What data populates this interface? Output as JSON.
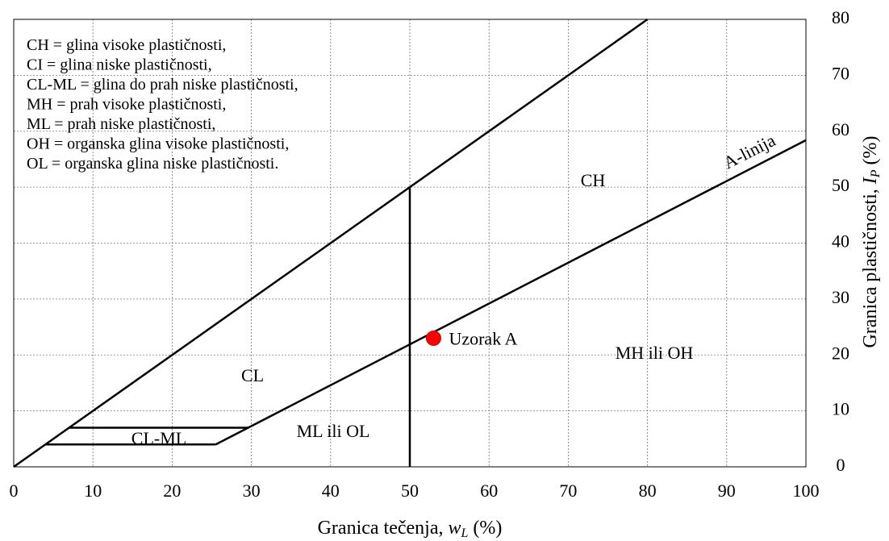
{
  "chart_data": {
    "type": "scatter",
    "xlabel": {
      "text": "Granica tečenja, ",
      "symbol": "w",
      "sub": "L",
      "unit": " (%)"
    },
    "ylabel": {
      "text": "Granica plastičnosti, ",
      "symbol": "I",
      "sub": "P",
      "unit": " (%)"
    },
    "xlim": [
      0,
      100
    ],
    "ylim": [
      0,
      80
    ],
    "xticks": [
      0,
      10,
      20,
      30,
      40,
      50,
      60,
      70,
      80,
      90,
      100
    ],
    "yticks": [
      0,
      10,
      20,
      30,
      40,
      50,
      60,
      70,
      80
    ],
    "grid": true,
    "series": [
      {
        "name": "Uzorak A",
        "color": "#ff0000",
        "x": [
          53
        ],
        "values": [
          23
        ]
      }
    ],
    "lines": [
      {
        "x": [
          0,
          80
        ],
        "y": [
          0,
          80
        ]
      },
      {
        "x": [
          25.5,
          100
        ],
        "y": [
          4,
          58.4
        ]
      },
      {
        "x": [
          50,
          50
        ],
        "y": [
          0,
          50
        ]
      },
      {
        "x": [
          7,
          29.6
        ],
        "y": [
          7,
          7
        ]
      },
      {
        "x": [
          4,
          25.5
        ],
        "y": [
          4,
          4
        ]
      }
    ],
    "notes": [
      "CH = glina visoke plastičnosti,",
      "CI = glina niske plastičnosti,",
      "CL-ML = glina do prah niske plastičnosti,",
      "MH = prah visoke plastičnosti,",
      "ML = prah niske plastičnosti,",
      "OH = organska glina visoke plastičnosti,",
      "OL = organska glina niske plastičnosti."
    ],
    "annotations": [
      "CH",
      "CL",
      "CL-ML",
      "ML ili OL",
      "MH ili OH",
      "A-linija"
    ]
  }
}
